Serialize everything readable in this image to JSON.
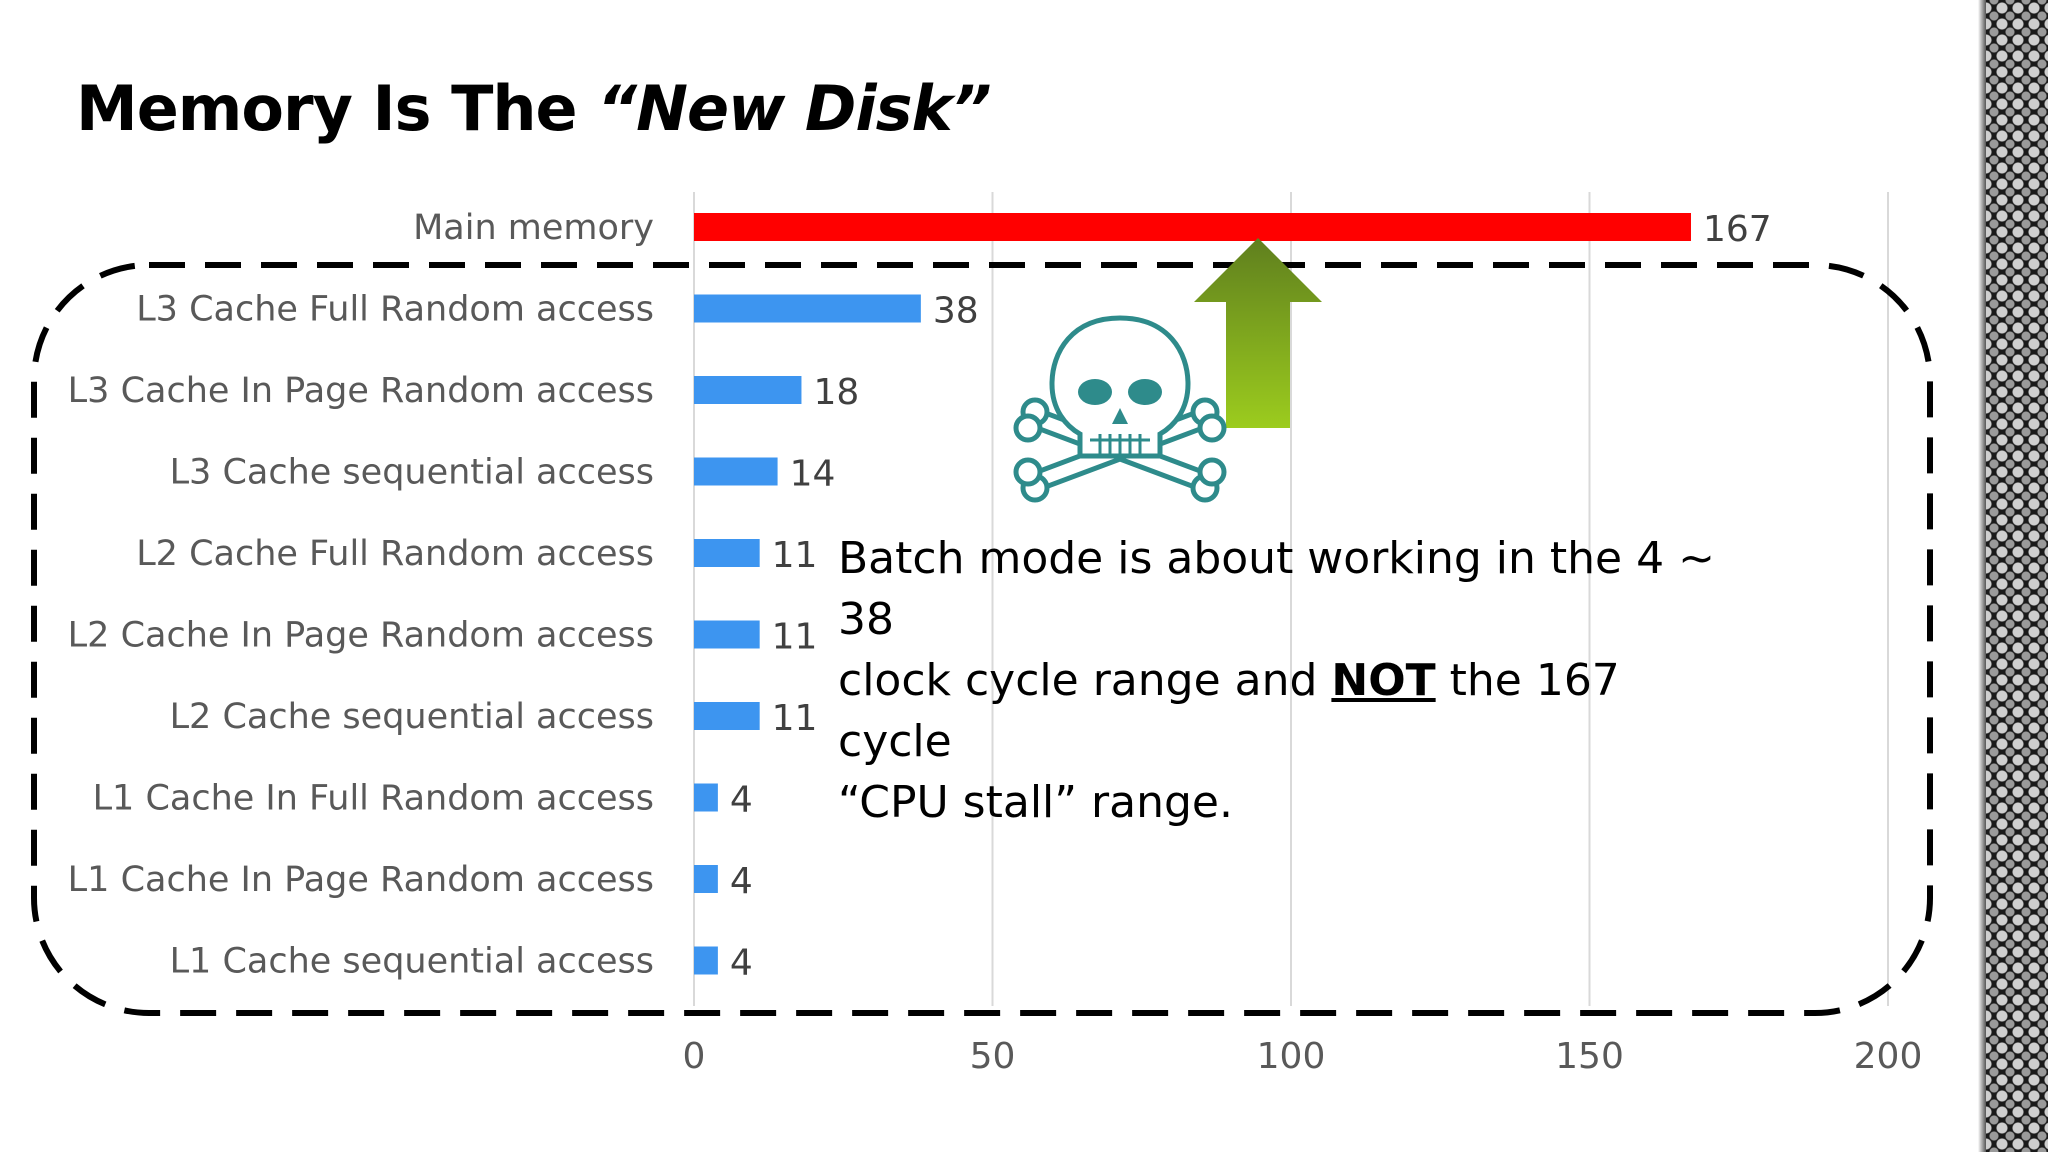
{
  "slide": {
    "title_prefix": "Memory Is The ",
    "title_emphasis": "“New Disk”",
    "note": {
      "line1": "Batch mode is about working in the 4 ~ 38",
      "line2_before": "clock cycle  range and ",
      "line2_emph": "NOT",
      "line2_after": " the 167 cycle",
      "line3": "“CPU stall” range."
    },
    "icons": [
      "skull-and-crossbones-icon",
      "green-up-arrow-icon"
    ],
    "colors": {
      "highlight_bar": "#ff0000",
      "bar": "#3d95f0",
      "arrow_top": "#5f7f1e",
      "arrow_bottom": "#9ccc1e",
      "skull": "#2e8b8b"
    }
  },
  "chart_data": {
    "type": "bar",
    "orientation": "horizontal",
    "categories": [
      "Main memory",
      "L3 Cache Full Random access",
      "L3 Cache In Page Random access",
      "L3 Cache sequential access",
      "L2 Cache Full Random access",
      "L2 Cache In Page Random access",
      "L2 Cache sequential access",
      "L1 Cache In Full Random access",
      "L1 Cache In Page Random access",
      "L1 Cache sequential access"
    ],
    "values": [
      167,
      38,
      18,
      14,
      11,
      11,
      11,
      4,
      4,
      4
    ],
    "value_labels": [
      "167",
      "38",
      "18",
      "14",
      "11",
      "11",
      "11",
      "4",
      "4",
      "4"
    ],
    "xlim": [
      0,
      200
    ],
    "xticks": [
      0,
      50,
      100,
      150,
      200
    ],
    "xtick_labels": [
      "0",
      "50",
      "100",
      "150",
      "200"
    ],
    "grid": true,
    "legend": "none"
  }
}
